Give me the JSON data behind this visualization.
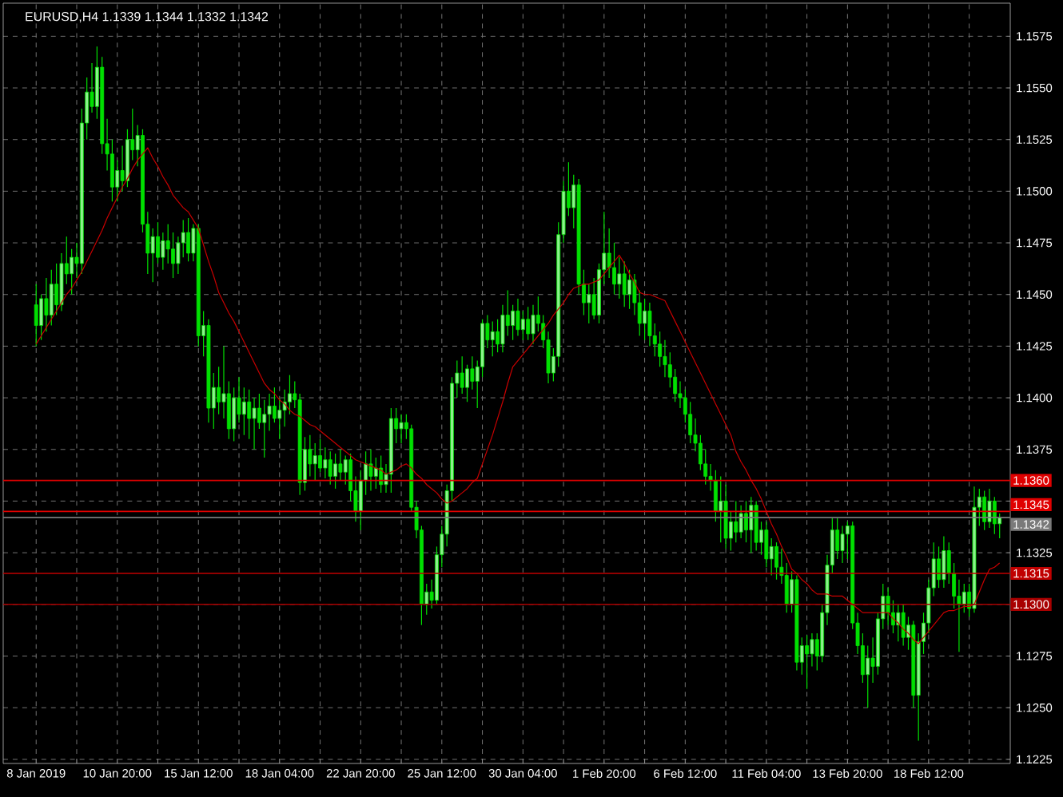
{
  "chart_data": {
    "type": "candlestick",
    "title": "EURUSD,H4  1.1339 1.1344 1.1332 1.1342",
    "color": "#00e000",
    "categories": [
      "8 Jan 2019",
      null,
      null,
      null,
      null,
      null,
      null,
      null,
      null,
      null,
      null,
      null,
      null,
      null,
      null,
      null,
      "10 Jan 20:00",
      null,
      null,
      null,
      null,
      null,
      null,
      null,
      null,
      null,
      null,
      null,
      null,
      null,
      null,
      null,
      "15 Jan 12:00",
      null,
      null,
      null,
      null,
      null,
      null,
      null,
      null,
      null,
      null,
      null,
      null,
      null,
      null,
      null,
      "18 Jan 04:00",
      null,
      null,
      null,
      null,
      null,
      null,
      null,
      null,
      null,
      null,
      null,
      null,
      null,
      null,
      null,
      "22 Jan 20:00",
      null,
      null,
      null,
      null,
      null,
      null,
      null,
      null,
      null,
      null,
      null,
      null,
      null,
      null,
      null,
      "25 Jan 12:00",
      null,
      null,
      null,
      null,
      null,
      null,
      null,
      null,
      null,
      null,
      null,
      null,
      null,
      null,
      null,
      "30 Jan 04:00",
      null,
      null,
      null,
      null,
      null,
      null,
      null,
      null,
      null,
      null,
      null,
      null,
      null,
      null,
      null,
      "1 Feb 20:00",
      null,
      null,
      null,
      null,
      null,
      null,
      null,
      null,
      null,
      null,
      null,
      null,
      null,
      null,
      null,
      "6 Feb 12:00",
      null,
      null,
      null,
      null,
      null,
      null,
      null,
      null,
      null,
      null,
      null,
      null,
      null,
      null,
      null,
      "11 Feb 04:00",
      null,
      null,
      null,
      null,
      null,
      null,
      null,
      null,
      null,
      null,
      null,
      null,
      null,
      null,
      null,
      "13 Feb 20:00",
      null,
      null,
      null,
      null,
      null,
      null,
      null,
      null,
      null,
      null,
      null,
      null,
      null,
      null,
      null,
      "18 Feb 12:00",
      null,
      null,
      null,
      null,
      null,
      null,
      null,
      null,
      null,
      null,
      null,
      null,
      null,
      null
    ],
    "ohlc": [
      [
        1.1445,
        1.1455,
        1.1425,
        1.1435
      ],
      [
        1.1435,
        1.145,
        1.1428,
        1.1448
      ],
      [
        1.1448,
        1.1458,
        1.1432,
        1.144
      ],
      [
        1.144,
        1.1462,
        1.1435,
        1.1455
      ],
      [
        1.1455,
        1.1465,
        1.144,
        1.1445
      ],
      [
        1.1445,
        1.147,
        1.1442,
        1.1465
      ],
      [
        1.1465,
        1.1478,
        1.1455,
        1.146
      ],
      [
        1.146,
        1.1472,
        1.145,
        1.1468
      ],
      [
        1.1468,
        1.1475,
        1.1458,
        1.1465
      ],
      [
        1.1465,
        1.154,
        1.146,
        1.1533
      ],
      [
        1.1533,
        1.1555,
        1.1525,
        1.1548
      ],
      [
        1.1548,
        1.1562,
        1.1538,
        1.1541
      ],
      [
        1.1541,
        1.157,
        1.1535,
        1.156
      ],
      [
        1.156,
        1.1565,
        1.1518,
        1.1523
      ],
      [
        1.1523,
        1.1535,
        1.151,
        1.1518
      ],
      [
        1.1518,
        1.1525,
        1.1495,
        1.1502
      ],
      [
        1.1502,
        1.1515,
        1.1495,
        1.151
      ],
      [
        1.151,
        1.1522,
        1.15,
        1.1505
      ],
      [
        1.1505,
        1.153,
        1.1502,
        1.1525
      ],
      [
        1.1525,
        1.154,
        1.1515,
        1.152
      ],
      [
        1.152,
        1.1532,
        1.1512,
        1.1527
      ],
      [
        1.1527,
        1.153,
        1.148,
        1.1484
      ],
      [
        1.1484,
        1.149,
        1.146,
        1.147
      ],
      [
        1.147,
        1.1482,
        1.1456,
        1.1478
      ],
      [
        1.1478,
        1.1485,
        1.1465,
        1.1468
      ],
      [
        1.1468,
        1.148,
        1.1462,
        1.1476
      ],
      [
        1.1476,
        1.1484,
        1.1465,
        1.1472
      ],
      [
        1.1472,
        1.148,
        1.1458,
        1.1465
      ],
      [
        1.1465,
        1.1478,
        1.146,
        1.1475
      ],
      [
        1.1475,
        1.1486,
        1.1468,
        1.148
      ],
      [
        1.148,
        1.1487,
        1.1466,
        1.147
      ],
      [
        1.147,
        1.1484,
        1.1466,
        1.1482
      ],
      [
        1.1482,
        1.1484,
        1.1425,
        1.143
      ],
      [
        1.143,
        1.1442,
        1.142,
        1.1435
      ],
      [
        1.1435,
        1.1438,
        1.1388,
        1.1395
      ],
      [
        1.1395,
        1.1412,
        1.1385,
        1.1405
      ],
      [
        1.1405,
        1.1415,
        1.1392,
        1.1398
      ],
      [
        1.1398,
        1.1425,
        1.139,
        1.1402
      ],
      [
        1.1402,
        1.1408,
        1.138,
        1.1385
      ],
      [
        1.1385,
        1.1405,
        1.1379,
        1.14
      ],
      [
        1.14,
        1.141,
        1.1388,
        1.1392
      ],
      [
        1.1392,
        1.1405,
        1.1382,
        1.1398
      ],
      [
        1.1398,
        1.1404,
        1.138,
        1.139
      ],
      [
        1.139,
        1.14,
        1.1375,
        1.1395
      ],
      [
        1.1395,
        1.1402,
        1.1385,
        1.1388
      ],
      [
        1.1388,
        1.1399,
        1.1371,
        1.1392
      ],
      [
        1.1392,
        1.1402,
        1.1384,
        1.1396
      ],
      [
        1.1396,
        1.1405,
        1.1388,
        1.139
      ],
      [
        1.139,
        1.14,
        1.138,
        1.1394
      ],
      [
        1.1394,
        1.1404,
        1.1386,
        1.1398
      ],
      [
        1.1398,
        1.1411,
        1.1392,
        1.1402
      ],
      [
        1.1402,
        1.1408,
        1.1395,
        1.1399
      ],
      [
        1.1399,
        1.1402,
        1.1353,
        1.1359
      ],
      [
        1.1359,
        1.1381,
        1.1355,
        1.1375
      ],
      [
        1.1375,
        1.1382,
        1.1362,
        1.1368
      ],
      [
        1.1368,
        1.1378,
        1.136,
        1.1372
      ],
      [
        1.1372,
        1.138,
        1.1364,
        1.1366
      ],
      [
        1.1366,
        1.1376,
        1.1361,
        1.137
      ],
      [
        1.137,
        1.1374,
        1.1358,
        1.1362
      ],
      [
        1.1362,
        1.1373,
        1.1356,
        1.1368
      ],
      [
        1.1368,
        1.1375,
        1.136,
        1.1364
      ],
      [
        1.1364,
        1.1372,
        1.1358,
        1.137
      ],
      [
        1.137,
        1.1373,
        1.135,
        1.1355
      ],
      [
        1.1355,
        1.1362,
        1.134,
        1.1345
      ],
      [
        1.1345,
        1.1365,
        1.1336,
        1.136
      ],
      [
        1.136,
        1.1374,
        1.1353,
        1.1368
      ],
      [
        1.1368,
        1.1375,
        1.1355,
        1.1362
      ],
      [
        1.1362,
        1.1371,
        1.1356,
        1.1366
      ],
      [
        1.1366,
        1.1372,
        1.1354,
        1.1358
      ],
      [
        1.1358,
        1.1368,
        1.1354,
        1.1363
      ],
      [
        1.1363,
        1.1395,
        1.1354,
        1.139
      ],
      [
        1.139,
        1.1395,
        1.1378,
        1.1385
      ],
      [
        1.1385,
        1.1392,
        1.1378,
        1.1388
      ],
      [
        1.1388,
        1.1392,
        1.138,
        1.1385
      ],
      [
        1.1385,
        1.1387,
        1.1345,
        1.1347
      ],
      [
        1.1347,
        1.135,
        1.1332,
        1.1336
      ],
      [
        1.1336,
        1.1338,
        1.129,
        1.13
      ],
      [
        1.13,
        1.131,
        1.1295,
        1.1306
      ],
      [
        1.1306,
        1.1312,
        1.1298,
        1.1302
      ],
      [
        1.1302,
        1.1328,
        1.13,
        1.1324
      ],
      [
        1.1324,
        1.1338,
        1.1318,
        1.1334
      ],
      [
        1.1334,
        1.1358,
        1.1328,
        1.1355
      ],
      [
        1.1355,
        1.141,
        1.135,
        1.1407
      ],
      [
        1.1407,
        1.1418,
        1.14,
        1.1412
      ],
      [
        1.1412,
        1.142,
        1.1402,
        1.1405
      ],
      [
        1.1405,
        1.1416,
        1.1398,
        1.1414
      ],
      [
        1.1414,
        1.142,
        1.1404,
        1.1408
      ],
      [
        1.1408,
        1.1418,
        1.1395,
        1.1415
      ],
      [
        1.1415,
        1.1438,
        1.141,
        1.1436
      ],
      [
        1.1436,
        1.144,
        1.1424,
        1.1428
      ],
      [
        1.1428,
        1.1437,
        1.142,
        1.1432
      ],
      [
        1.1432,
        1.1438,
        1.1422,
        1.1426
      ],
      [
        1.1426,
        1.1445,
        1.1422,
        1.144
      ],
      [
        1.144,
        1.1452,
        1.143,
        1.1435
      ],
      [
        1.1435,
        1.1445,
        1.1428,
        1.1442
      ],
      [
        1.1442,
        1.1448,
        1.143,
        1.1433
      ],
      [
        1.1433,
        1.1442,
        1.1428,
        1.1438
      ],
      [
        1.1438,
        1.1444,
        1.1428,
        1.1431
      ],
      [
        1.1431,
        1.1445,
        1.1426,
        1.144
      ],
      [
        1.144,
        1.1449,
        1.1432,
        1.1436
      ],
      [
        1.1436,
        1.144,
        1.1424,
        1.1428
      ],
      [
        1.1428,
        1.1432,
        1.1407,
        1.1412
      ],
      [
        1.1412,
        1.1424,
        1.1408,
        1.142
      ],
      [
        1.142,
        1.1485,
        1.1415,
        1.1479
      ],
      [
        1.1479,
        1.1505,
        1.1475,
        1.15
      ],
      [
        1.15,
        1.1514,
        1.1488,
        1.1492
      ],
      [
        1.1492,
        1.1508,
        1.1482,
        1.1503
      ],
      [
        1.1503,
        1.1506,
        1.145,
        1.1455
      ],
      [
        1.1455,
        1.1462,
        1.144,
        1.1446
      ],
      [
        1.1446,
        1.1455,
        1.1436,
        1.145
      ],
      [
        1.145,
        1.1458,
        1.1438,
        1.144
      ],
      [
        1.144,
        1.1465,
        1.1436,
        1.1462
      ],
      [
        1.1462,
        1.149,
        1.1455,
        1.147
      ],
      [
        1.147,
        1.1482,
        1.1458,
        1.1463
      ],
      [
        1.1463,
        1.1475,
        1.145,
        1.1455
      ],
      [
        1.1455,
        1.1468,
        1.1448,
        1.146
      ],
      [
        1.146,
        1.1466,
        1.1444,
        1.145
      ],
      [
        1.145,
        1.1462,
        1.1443,
        1.1457
      ],
      [
        1.1457,
        1.146,
        1.144,
        1.1446
      ],
      [
        1.1446,
        1.1452,
        1.143,
        1.1436
      ],
      [
        1.1436,
        1.1448,
        1.1428,
        1.1442
      ],
      [
        1.1442,
        1.1446,
        1.1425,
        1.143
      ],
      [
        1.143,
        1.1436,
        1.142,
        1.1426
      ],
      [
        1.1426,
        1.1432,
        1.1415,
        1.142
      ],
      [
        1.142,
        1.1428,
        1.141,
        1.1416
      ],
      [
        1.1416,
        1.1422,
        1.1405,
        1.141
      ],
      [
        1.141,
        1.1414,
        1.1398,
        1.1402
      ],
      [
        1.1402,
        1.1408,
        1.1395,
        1.14
      ],
      [
        1.14,
        1.1404,
        1.1388,
        1.1392
      ],
      [
        1.1392,
        1.1398,
        1.1378,
        1.1382
      ],
      [
        1.1382,
        1.139,
        1.1374,
        1.1378
      ],
      [
        1.1378,
        1.1382,
        1.1365,
        1.1368
      ],
      [
        1.1368,
        1.1375,
        1.1358,
        1.1362
      ],
      [
        1.1362,
        1.1368,
        1.1355,
        1.136
      ],
      [
        1.136,
        1.1365,
        1.134,
        1.1345
      ],
      [
        1.1345,
        1.1362,
        1.133,
        1.135
      ],
      [
        1.135,
        1.1358,
        1.1327,
        1.1332
      ],
      [
        1.1332,
        1.1345,
        1.1326,
        1.134
      ],
      [
        1.134,
        1.135,
        1.133,
        1.1335
      ],
      [
        1.1335,
        1.1348,
        1.1332,
        1.1344
      ],
      [
        1.1344,
        1.135,
        1.133,
        1.1336
      ],
      [
        1.1336,
        1.1352,
        1.1325,
        1.1348
      ],
      [
        1.1348,
        1.135,
        1.1326,
        1.133
      ],
      [
        1.133,
        1.134,
        1.1324,
        1.1336
      ],
      [
        1.1336,
        1.134,
        1.1318,
        1.1322
      ],
      [
        1.1322,
        1.1332,
        1.1314,
        1.1328
      ],
      [
        1.1328,
        1.133,
        1.1312,
        1.1318
      ],
      [
        1.1318,
        1.1327,
        1.131,
        1.1314
      ],
      [
        1.1314,
        1.132,
        1.1296,
        1.13
      ],
      [
        1.13,
        1.1316,
        1.1296,
        1.1312
      ],
      [
        1.1312,
        1.1314,
        1.1268,
        1.1272
      ],
      [
        1.1272,
        1.1284,
        1.1266,
        1.128
      ],
      [
        1.128,
        1.1285,
        1.1259,
        1.1276
      ],
      [
        1.1276,
        1.1286,
        1.127,
        1.1283
      ],
      [
        1.1283,
        1.1286,
        1.1268,
        1.1275
      ],
      [
        1.1275,
        1.13,
        1.1272,
        1.1296
      ],
      [
        1.1296,
        1.1324,
        1.129,
        1.1319
      ],
      [
        1.1319,
        1.1342,
        1.1315,
        1.1336
      ],
      [
        1.1336,
        1.1342,
        1.1322,
        1.1326
      ],
      [
        1.1326,
        1.1338,
        1.132,
        1.1334
      ],
      [
        1.1334,
        1.134,
        1.1322,
        1.1338
      ],
      [
        1.1338,
        1.134,
        1.1288,
        1.1291
      ],
      [
        1.1291,
        1.1296,
        1.1276,
        1.128
      ],
      [
        1.128,
        1.1286,
        1.1262,
        1.1266
      ],
      [
        1.1266,
        1.128,
        1.125,
        1.1274
      ],
      [
        1.1274,
        1.1284,
        1.1262,
        1.127
      ],
      [
        1.127,
        1.1296,
        1.1266,
        1.1293
      ],
      [
        1.1293,
        1.131,
        1.1288,
        1.1304
      ],
      [
        1.1304,
        1.1308,
        1.129,
        1.1296
      ],
      [
        1.1296,
        1.1302,
        1.1286,
        1.129
      ],
      [
        1.129,
        1.13,
        1.1282,
        1.1296
      ],
      [
        1.1296,
        1.13,
        1.128,
        1.1284
      ],
      [
        1.1284,
        1.1294,
        1.1278,
        1.129
      ],
      [
        1.129,
        1.1292,
        1.125,
        1.1256
      ],
      [
        1.1256,
        1.1286,
        1.1234,
        1.1282
      ],
      [
        1.1282,
        1.1296,
        1.1276,
        1.1291
      ],
      [
        1.1291,
        1.1312,
        1.1286,
        1.1308
      ],
      [
        1.1308,
        1.133,
        1.1304,
        1.1322
      ],
      [
        1.1322,
        1.1328,
        1.1308,
        1.1312
      ],
      [
        1.1312,
        1.1333,
        1.1308,
        1.1326
      ],
      [
        1.1326,
        1.133,
        1.131,
        1.1315
      ],
      [
        1.1315,
        1.132,
        1.1298,
        1.1304
      ],
      [
        1.1304,
        1.1312,
        1.1277,
        1.13
      ],
      [
        1.13,
        1.131,
        1.1296,
        1.1306
      ],
      [
        1.1306,
        1.131,
        1.1294,
        1.1298
      ],
      [
        1.1298,
        1.1357,
        1.1296,
        1.1347
      ],
      [
        1.1347,
        1.1356,
        1.1338,
        1.1352
      ],
      [
        1.1352,
        1.1355,
        1.1336,
        1.134
      ],
      [
        1.134,
        1.1356,
        1.1337,
        1.135
      ],
      [
        1.135,
        1.1352,
        1.1334,
        1.1339
      ],
      [
        1.1339,
        1.1344,
        1.1332,
        1.1342
      ]
    ],
    "series": [
      {
        "type": "line",
        "color": "#c80000",
        "values": [
          1.1426,
          1.143,
          1.1434,
          1.1438,
          1.1442,
          1.1446,
          1.145,
          1.1453,
          1.1457,
          1.1461,
          1.1466,
          1.1471,
          1.1476,
          1.1481,
          1.1487,
          1.1492,
          1.1497,
          1.1502,
          1.1506,
          1.1511,
          1.1515,
          1.1518,
          1.1521,
          1.1516,
          1.1512,
          1.1507,
          1.1503,
          1.1498,
          1.1495,
          1.1492,
          1.149,
          1.1486,
          1.1482,
          1.1474,
          1.1466,
          1.1459,
          1.1451,
          1.1446,
          1.1441,
          1.1437,
          1.1432,
          1.1427,
          1.1422,
          1.1417,
          1.1412,
          1.1407,
          1.1404,
          1.1402,
          1.1399,
          1.1397,
          1.1394,
          1.1392,
          1.1391,
          1.1389,
          1.1387,
          1.1386,
          1.1384,
          1.1382,
          1.138,
          1.1378,
          1.1376,
          1.1374,
          1.1372,
          1.137,
          1.1369,
          1.1368,
          1.1367,
          1.1366,
          1.1365,
          1.1363,
          1.1364,
          1.1365,
          1.1367,
          1.1368,
          1.1366,
          1.1363,
          1.1361,
          1.1358,
          1.1356,
          1.1354,
          1.1351,
          1.1349,
          1.135,
          1.1352,
          1.1354,
          1.1356,
          1.1359,
          1.1361,
          1.1368,
          1.1375,
          1.1382,
          1.139,
          1.1398,
          1.1407,
          1.1415,
          1.1418,
          1.1421,
          1.1424,
          1.1427,
          1.143,
          1.1433,
          1.1436,
          1.144,
          1.1443,
          1.1446,
          1.145,
          1.1453,
          1.1454,
          1.1455,
          1.1455,
          1.1456,
          1.1457,
          1.146,
          1.1463,
          1.1466,
          1.1469,
          1.1465,
          1.146,
          1.1456,
          1.1451,
          1.145,
          1.145,
          1.1449,
          1.1448,
          1.1447,
          1.1442,
          1.1437,
          1.1432,
          1.1427,
          1.1422,
          1.1417,
          1.1412,
          1.1407,
          1.1402,
          1.1397,
          1.1392,
          1.1387,
          1.1382,
          1.1374,
          1.1369,
          1.1365,
          1.136,
          1.1356,
          1.1351,
          1.1345,
          1.1339,
          1.1334,
          1.1328,
          1.1323,
          1.1317,
          1.1315,
          1.1312,
          1.131,
          1.1307,
          1.1305,
          1.1305,
          1.1305,
          1.1304,
          1.1304,
          1.1304,
          1.1302,
          1.13,
          1.1298,
          1.1296,
          1.1296,
          1.1296,
          1.1296,
          1.1296,
          1.1296,
          1.1293,
          1.1291,
          1.1288,
          1.1286,
          1.1283,
          1.1281,
          1.1284,
          1.1287,
          1.129,
          1.1293,
          1.1296,
          1.1297,
          1.1297,
          1.1298,
          1.1299,
          1.1299,
          1.13,
          1.1306,
          1.1312,
          1.1317,
          1.1318,
          1.132
        ]
      }
    ],
    "ylim": [
      1.1223,
      1.1591
    ],
    "yticks": [
      {
        "value": 1.1575,
        "label": "1.1575"
      },
      {
        "value": 1.155,
        "label": "1.1550"
      },
      {
        "value": 1.1525,
        "label": "1.1525"
      },
      {
        "value": 1.15,
        "label": "1.1500"
      },
      {
        "value": 1.1475,
        "label": "1.1475"
      },
      {
        "value": 1.145,
        "label": "1.1450"
      },
      {
        "value": 1.1425,
        "label": "1.1425"
      },
      {
        "value": 1.14,
        "label": "1.1400"
      },
      {
        "value": 1.1375,
        "label": "1.1375"
      },
      {
        "value": 1.135,
        "label": null
      },
      {
        "value": 1.1325,
        "label": "1.1325"
      },
      {
        "value": 1.13,
        "label": null
      },
      {
        "value": 1.1275,
        "label": "1.1275"
      },
      {
        "value": 1.125,
        "label": "1.1250"
      },
      {
        "value": 1.1225,
        "label": "1.1225"
      }
    ],
    "ref_lines": [
      {
        "axis": "y",
        "value": 1.136,
        "label": "1.1360",
        "color": "#e00000"
      },
      {
        "axis": "y",
        "value": 1.1345,
        "label": "1.1345",
        "color": "#e00000"
      },
      {
        "axis": "y",
        "value": 1.1342,
        "label": "1.1342",
        "color": "#7a7a7a"
      },
      {
        "axis": "y",
        "value": 1.1315,
        "label": "1.1315",
        "color": "#c00000"
      },
      {
        "axis": "y",
        "value": 1.13,
        "label": "1.1300",
        "color": "#a80000"
      }
    ],
    "grid": true
  }
}
